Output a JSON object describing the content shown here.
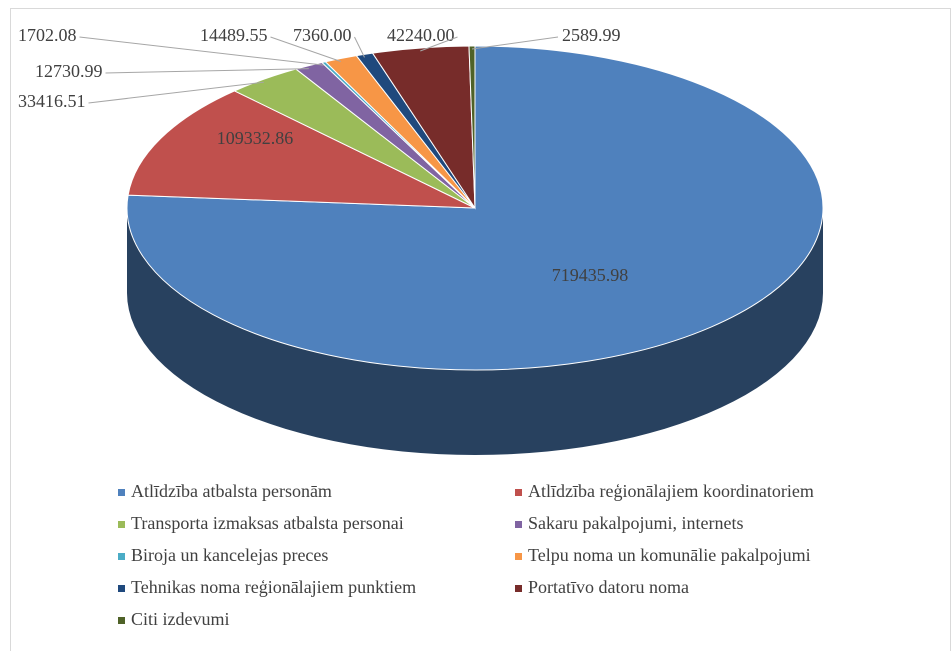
{
  "chart_data": {
    "type": "pie",
    "categories": [
      "Atlīdzība atbalsta personām",
      "Atlīdzība reģionālajiem koordinatoriem",
      "Transporta izmaksas atbalsta personai",
      "Sakaru pakalpojumi, internets",
      "Biroja un kancelejas preces",
      "Telpu noma un komunālie pakalpojumi",
      "Tehnikas noma reģionālajiem punktiem",
      "Portatīvo datoru noma",
      "Citi izdevumi"
    ],
    "values": [
      719435.98,
      109332.86,
      33416.51,
      12730.99,
      1702.08,
      14489.55,
      7360,
      42240,
      2589.99
    ],
    "value_labels": [
      "719435.98",
      "109332.86",
      "33416.51",
      "12730.99",
      "1702.08",
      "14489.55",
      "7360.00",
      "42240.00",
      "2589.99"
    ],
    "colors": [
      "#4f81bd",
      "#c0504d",
      "#9bbb59",
      "#8064a2",
      "#4bacc6",
      "#f79646",
      "#1f497d",
      "#772c2a",
      "#4f6228"
    ],
    "legend": "bottom"
  }
}
